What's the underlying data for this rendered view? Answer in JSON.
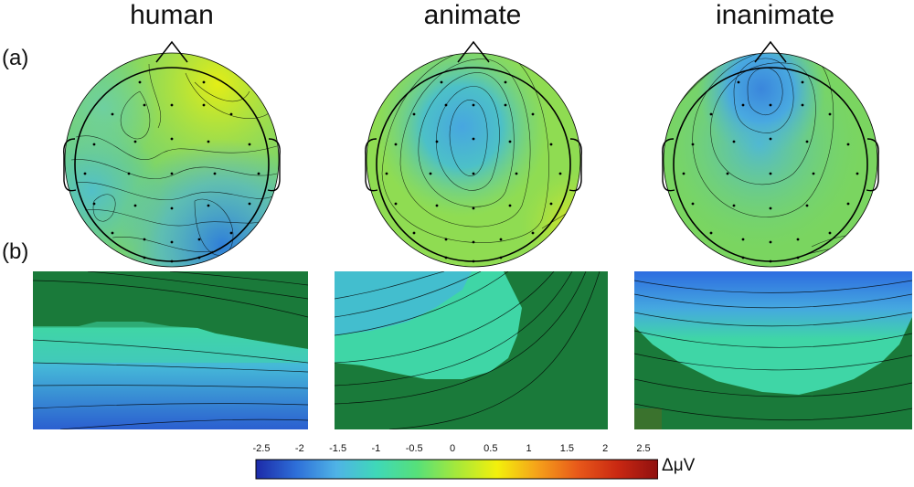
{
  "titles": {
    "human": "human",
    "animate": "animate",
    "inanimate": "inanimate"
  },
  "row_labels": {
    "a": "(a)",
    "b": "(b)"
  },
  "colorbar": {
    "unit": "ΔμV",
    "ticks": [
      "-2.5",
      "-2",
      "-1.5",
      "-1",
      "-0.5",
      "0",
      "0.5",
      "1",
      "1.5",
      "2",
      "2.5"
    ],
    "range": [
      -2.5,
      2.5
    ],
    "colors": [
      "#1c2aa8",
      "#2e6fd8",
      "#4fb3e6",
      "#3fd8b8",
      "#56e07a",
      "#a6e83a",
      "#f3f00c",
      "#f5a11a",
      "#e8591a",
      "#c92812",
      "#8f1010"
    ]
  },
  "panels": {
    "human": {
      "electrode_count": 32,
      "theme": "mixed"
    },
    "animate": {
      "electrode_count": 32,
      "theme": "central-negative"
    },
    "inanimate": {
      "electrode_count": 32,
      "theme": "frontal-negative"
    }
  }
}
